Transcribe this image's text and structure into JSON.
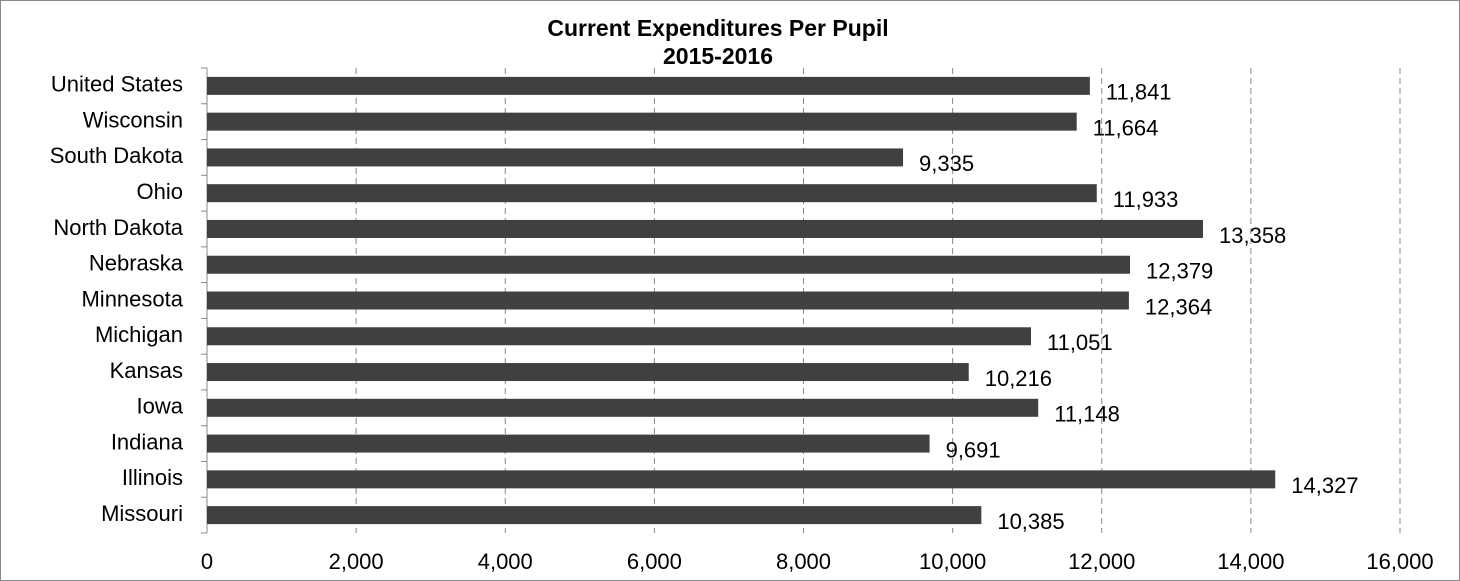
{
  "chart_data": {
    "type": "bar",
    "orientation": "horizontal",
    "title": "Current Expenditures Per Pupil",
    "subtitle": "2015-2016",
    "categories": [
      "United States",
      "Wisconsin",
      "South Dakota",
      "Ohio",
      "North Dakota",
      "Nebraska",
      "Minnesota",
      "Michigan",
      "Kansas",
      "Iowa",
      "Indiana",
      "Illinois",
      "Missouri"
    ],
    "values": [
      11841,
      11664,
      9335,
      11933,
      13358,
      12379,
      12364,
      11051,
      10216,
      11148,
      9691,
      14327,
      10385
    ],
    "value_labels": [
      "11,841",
      "11,664",
      "9,335",
      "11,933",
      "13,358",
      "12,379",
      "12,364",
      "11,051",
      "10,216",
      "11,148",
      "9,691",
      "14,327",
      "10,385"
    ],
    "color": "#404040",
    "xlim": [
      0,
      16000
    ],
    "xticks": [
      0,
      {
        "value": 2000,
        "label": "2,000"
      },
      {
        "value": 4000,
        "label": "4,000"
      },
      {
        "value": 6000,
        "label": "6,000"
      },
      {
        "value": 8000,
        "label": "8,000"
      },
      {
        "value": 10000,
        "label": "10,000"
      },
      {
        "value": 12000,
        "label": "12,000"
      },
      {
        "value": 14000,
        "label": "14,000"
      },
      {
        "value": 16000,
        "label": "16,000"
      }
    ],
    "grid": true
  }
}
